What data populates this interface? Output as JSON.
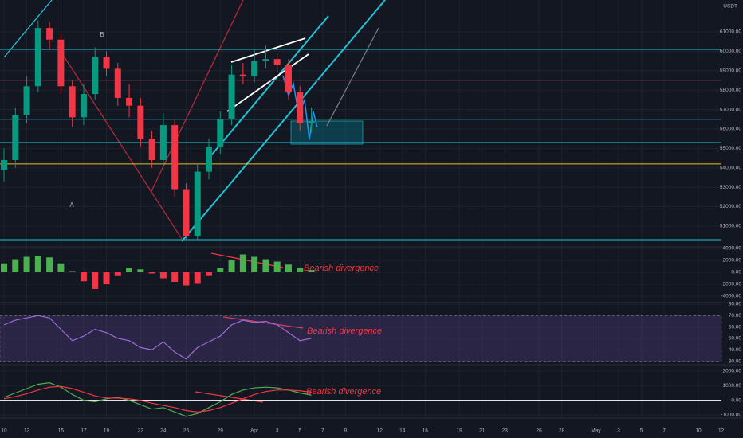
{
  "chart_data": [
    {
      "type": "candlestick",
      "unit": "USDT",
      "x": [
        0,
        1,
        2,
        3,
        4,
        5,
        6,
        7,
        8,
        9,
        10,
        11,
        12,
        13,
        14,
        15,
        16,
        17,
        18,
        19,
        20,
        21,
        22,
        23,
        24,
        25,
        26,
        27
      ],
      "open": [
        53900,
        54400,
        56700,
        58200,
        61200,
        60600,
        58200,
        56600,
        57800,
        59700,
        59100,
        57600,
        57200,
        55500,
        54400,
        56200,
        52900,
        50500,
        53800,
        55100,
        56500,
        58800,
        58700,
        59500,
        59600,
        59300,
        57900,
        56300
      ],
      "high": [
        55000,
        57100,
        58700,
        61600,
        61500,
        60900,
        58500,
        58300,
        60200,
        60000,
        59400,
        58300,
        57600,
        55900,
        56800,
        56500,
        53200,
        54200,
        55500,
        56900,
        59300,
        59400,
        60100,
        60300,
        59900,
        59600,
        58200,
        57100
      ],
      "low": [
        53300,
        54000,
        56300,
        57900,
        60100,
        57800,
        56100,
        56200,
        57500,
        58700,
        57200,
        56600,
        55100,
        54000,
        54100,
        52500,
        50300,
        50300,
        53400,
        54700,
        56200,
        58300,
        58400,
        59100,
        58900,
        57500,
        55900,
        55800
      ],
      "close": [
        54400,
        56700,
        58200,
        61200,
        60600,
        58200,
        56600,
        57800,
        59700,
        59100,
        57600,
        57200,
        55500,
        54400,
        56200,
        52900,
        50500,
        53800,
        55100,
        56500,
        58800,
        58700,
        59500,
        59600,
        59300,
        57900,
        56300,
        56400
      ],
      "up_color": "#089981",
      "down_color": "#f23645",
      "levels": [
        60100,
        58500,
        56500,
        55300,
        54200,
        50300
      ],
      "level_colors": [
        "#22c3d6",
        "#5d2a36",
        "#22c3d6",
        "#22c3d6",
        "#e8c22a",
        "#22c3d6"
      ],
      "annotations": [
        "A",
        "B"
      ],
      "ylim": [
        49930,
        62640
      ],
      "yticks": [
        {
          "value": 51000,
          "label": "51000.00"
        },
        {
          "value": 52000,
          "label": "52000.00"
        },
        {
          "value": 53000,
          "label": "53000.00"
        },
        {
          "value": 54000,
          "label": "54000.00"
        },
        {
          "value": 55000,
          "label": "55000.00"
        },
        {
          "value": 56000,
          "label": "56000.00"
        },
        {
          "value": 57000,
          "label": "57000.00"
        },
        {
          "value": 58000,
          "label": "58000.00"
        },
        {
          "value": 59000,
          "label": "59000.00"
        },
        {
          "value": 60000,
          "label": "60000.00"
        },
        {
          "value": 61000,
          "label": "61000.00"
        }
      ],
      "xlim": [
        -0.35,
        63.03
      ],
      "xticks": [
        {
          "value": 0,
          "label": "10"
        },
        {
          "value": 2,
          "label": "12"
        },
        {
          "value": 5,
          "label": "15"
        },
        {
          "value": 7,
          "label": "17"
        },
        {
          "value": 9,
          "label": "19"
        },
        {
          "value": 12,
          "label": "22"
        },
        {
          "value": 14,
          "label": "24"
        },
        {
          "value": 16,
          "label": "26"
        },
        {
          "value": 19,
          "label": "29"
        },
        {
          "value": 22,
          "label": "Apr"
        },
        {
          "value": 24,
          "label": "3"
        },
        {
          "value": 26,
          "label": "5"
        },
        {
          "value": 28,
          "label": "7"
        },
        {
          "value": 30,
          "label": "9"
        },
        {
          "value": 33,
          "label": "12"
        },
        {
          "value": 35,
          "label": "14"
        },
        {
          "value": 37,
          "label": "16"
        },
        {
          "value": 40,
          "label": "19"
        },
        {
          "value": 42,
          "label": "21"
        },
        {
          "value": 44,
          "label": "23"
        },
        {
          "value": 47,
          "label": "26"
        },
        {
          "value": 49,
          "label": "28"
        },
        {
          "value": 52,
          "label": "May"
        },
        {
          "value": 54,
          "label": "3"
        },
        {
          "value": 56,
          "label": "5"
        },
        {
          "value": 58,
          "label": "7"
        },
        {
          "value": 61,
          "label": "10"
        },
        {
          "value": 63,
          "label": "12"
        }
      ],
      "grid": true
    },
    {
      "type": "bar",
      "annotation": "Bearish divergence",
      "values": [
        1500,
        2200,
        2600,
        2800,
        2500,
        1500,
        200,
        -1500,
        -2800,
        -2000,
        -500,
        800,
        500,
        -200,
        -1000,
        -1600,
        -2200,
        -1800,
        -500,
        800,
        2000,
        3000,
        2600,
        2200,
        1800,
        1300,
        800,
        400
      ],
      "up_color": "#4caf50",
      "down_color": "#f23645",
      "ylim": [
        -5070,
        4270
      ],
      "yticks": [
        {
          "value": 4000,
          "label": "4000.00"
        },
        {
          "value": 2000,
          "label": "2000.00"
        },
        {
          "value": 0,
          "label": "0.00"
        },
        {
          "value": -2000,
          "label": "-2000.00"
        },
        {
          "value": -4000,
          "label": "-4000.00"
        }
      ]
    },
    {
      "type": "line",
      "annotation": "Bearish divergence",
      "values": [
        62,
        66,
        68,
        70,
        68,
        58,
        48,
        52,
        58,
        55,
        50,
        48,
        42,
        40,
        47,
        38,
        32,
        42,
        47,
        52,
        62,
        66,
        64,
        65,
        62,
        55,
        48,
        50
      ],
      "color": "#9c6ad4",
      "band": [
        70,
        30
      ],
      "band_color": "rgba(126,87,194,0.22)",
      "ylim": [
        26.9,
        81.4
      ],
      "yticks": [
        {
          "value": 80,
          "label": "80.00"
        },
        {
          "value": 70,
          "label": "70.00"
        },
        {
          "value": 60,
          "label": "60.00"
        },
        {
          "value": 50,
          "label": "50.00"
        },
        {
          "value": 40,
          "label": "40.00"
        },
        {
          "value": 30,
          "label": "30.00"
        }
      ]
    },
    {
      "type": "line",
      "annotation": "Bearish divergence",
      "series": [
        {
          "color": "#4caf50",
          "values": [
            200,
            500,
            800,
            1100,
            1200,
            900,
            400,
            0,
            -100,
            100,
            200,
            0,
            -300,
            -600,
            -500,
            -800,
            -1100,
            -900,
            -500,
            -100,
            400,
            700,
            850,
            900,
            850,
            700,
            500,
            350
          ]
        },
        {
          "color": "#f23645",
          "values": [
            100,
            250,
            450,
            700,
            900,
            950,
            800,
            550,
            300,
            150,
            150,
            100,
            0,
            -200,
            -350,
            -500,
            -700,
            -800,
            -700,
            -500,
            -200,
            100,
            400,
            600,
            700,
            700,
            650,
            550
          ]
        }
      ],
      "zero_line": 0,
      "ylim": [
        -1218,
        2436
      ],
      "yticks": [
        {
          "value": 2000,
          "label": "2000.00"
        },
        {
          "value": 1000,
          "label": "1000.00"
        },
        {
          "value": 0,
          "label": "0.00"
        },
        {
          "value": -1000,
          "label": "-1000.00"
        }
      ]
    }
  ]
}
